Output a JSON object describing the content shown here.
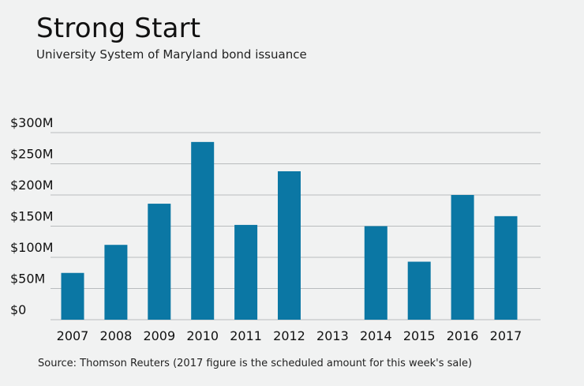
{
  "colors": {
    "background": "#f1f2f2",
    "bar": "#0b77a4",
    "grid": "#b9bcbe"
  },
  "chart_data": {
    "type": "bar",
    "title": "Strong Start",
    "subtitle": "University System of Maryland bond issuance",
    "xlabel": "",
    "ylabel": "",
    "categories": [
      "2007",
      "2008",
      "2009",
      "2010",
      "2011",
      "2012",
      "2013",
      "2014",
      "2015",
      "2016",
      "2017"
    ],
    "values": [
      75,
      120,
      186,
      285,
      152,
      238,
      0,
      150,
      93,
      200,
      166
    ],
    "units": "$M",
    "ylim": [
      0,
      300
    ],
    "yticks": [
      {
        "value": 0,
        "label": "$0"
      },
      {
        "value": 50,
        "label": "$50M"
      },
      {
        "value": 100,
        "label": "$100M"
      },
      {
        "value": 150,
        "label": "$150M"
      },
      {
        "value": 200,
        "label": "$200M"
      },
      {
        "value": 250,
        "label": "$250M"
      },
      {
        "value": 300,
        "label": "$300M"
      }
    ],
    "grid": true,
    "legend": "none",
    "source": "Source: Thomson Reuters (2017 figure is the scheduled amount for this week's sale)"
  }
}
